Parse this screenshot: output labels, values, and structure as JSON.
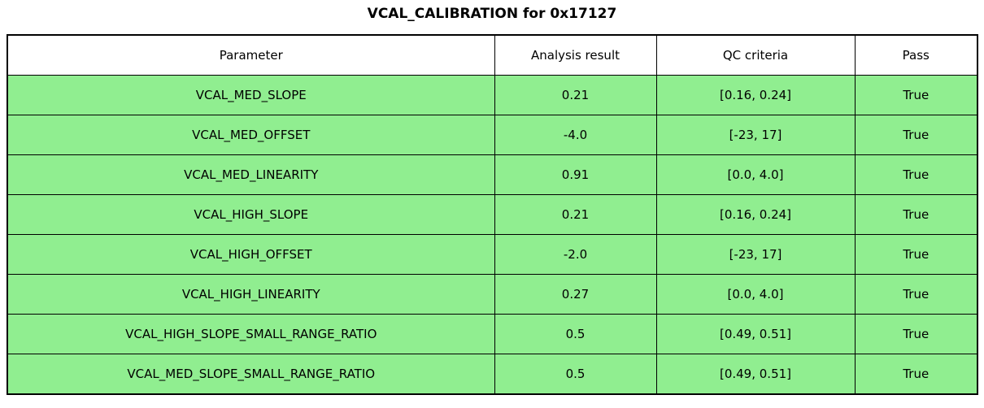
{
  "chart_data": {
    "type": "table",
    "title": "VCAL_CALIBRATION for 0x17127",
    "columns": [
      "Parameter",
      "Analysis result",
      "QC criteria",
      "Pass"
    ],
    "rows": [
      [
        "VCAL_MED_SLOPE",
        "0.21",
        "[0.16, 0.24]",
        "True"
      ],
      [
        "VCAL_MED_OFFSET",
        "-4.0",
        "[-23, 17]",
        "True"
      ],
      [
        "VCAL_MED_LINEARITY",
        "0.91",
        "[0.0, 4.0]",
        "True"
      ],
      [
        "VCAL_HIGH_SLOPE",
        "0.21",
        "[0.16, 0.24]",
        "True"
      ],
      [
        "VCAL_HIGH_OFFSET",
        "-2.0",
        "[-23, 17]",
        "True"
      ],
      [
        "VCAL_HIGH_LINEARITY",
        "0.27",
        "[0.0, 4.0]",
        "True"
      ],
      [
        "VCAL_HIGH_SLOPE_SMALL_RANGE_RATIO",
        "0.5",
        "[0.49, 0.51]",
        "True"
      ],
      [
        "VCAL_MED_SLOPE_SMALL_RANGE_RATIO",
        "0.5",
        "[0.49, 0.51]",
        "True"
      ]
    ],
    "layout": {
      "header_bg": "#FFFFFF",
      "row_bg": "#90EE90",
      "border_color": "#000000",
      "pass_all": true
    }
  }
}
